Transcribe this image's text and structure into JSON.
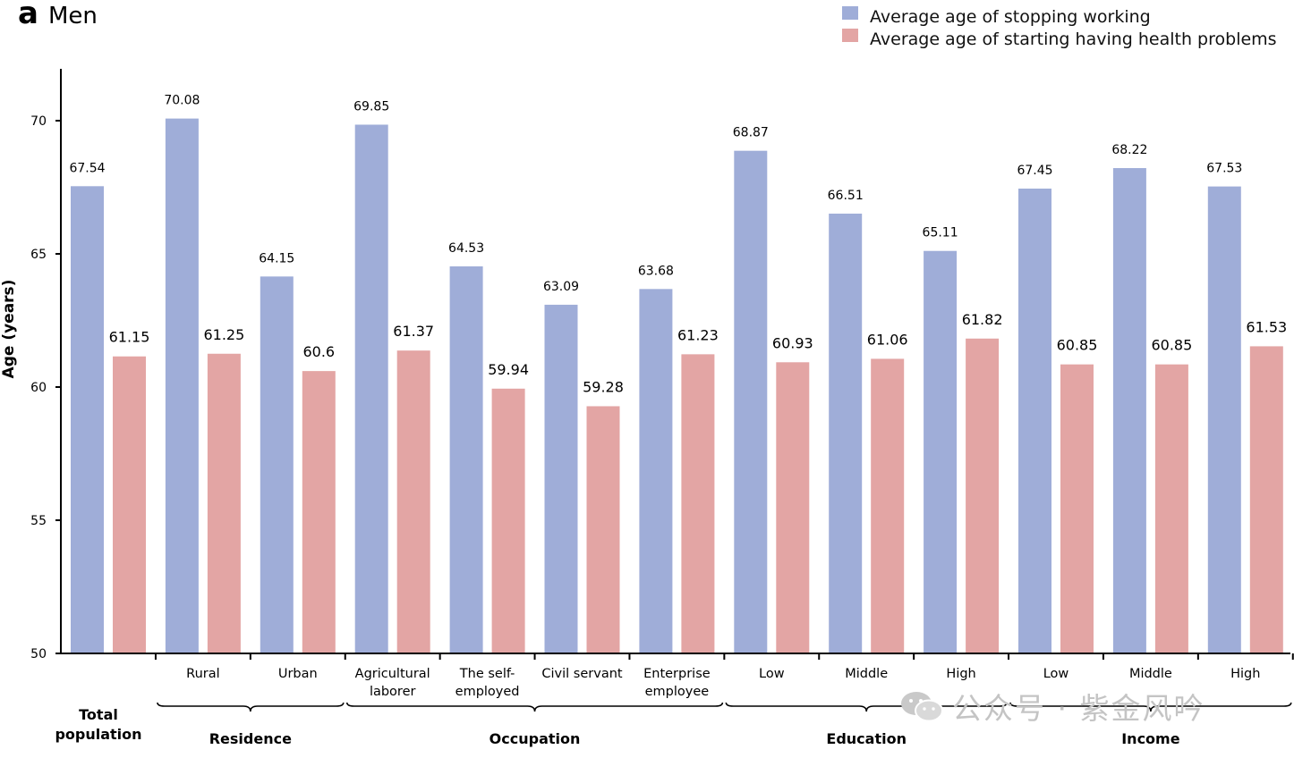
{
  "panel": {
    "letter": "a",
    "title": "Men"
  },
  "colors": {
    "series_a": "#9fadd8",
    "series_b": "#e3a5a4",
    "axis": "#000000",
    "watermark": "#c4c4c4"
  },
  "watermark": {
    "icon": "wechat-icon",
    "text": "公众号 · 紫金风吟"
  },
  "chart_data": {
    "type": "bar",
    "ylabel": "Age (years)",
    "ylim": [
      50,
      72
    ],
    "yticks": [
      50,
      55,
      60,
      65,
      70
    ],
    "grid": false,
    "legend_position": "top-right",
    "categories": [
      {
        "label": [
          "Total",
          "population"
        ],
        "bold": true
      },
      {
        "label": [
          "Rural"
        ]
      },
      {
        "label": [
          "Urban"
        ]
      },
      {
        "label": [
          "Agricultural",
          "laborer"
        ]
      },
      {
        "label": [
          "The self-",
          "employed"
        ]
      },
      {
        "label": [
          "Civil servant"
        ]
      },
      {
        "label": [
          "Enterprise",
          "employee"
        ]
      },
      {
        "label": [
          "Low"
        ]
      },
      {
        "label": [
          "Middle"
        ]
      },
      {
        "label": [
          "High"
        ]
      },
      {
        "label": [
          "Low"
        ]
      },
      {
        "label": [
          "Middle"
        ]
      },
      {
        "label": [
          "High"
        ]
      }
    ],
    "groups": [
      {
        "name": "Residence",
        "from": 1,
        "to": 2
      },
      {
        "name": "Occupation",
        "from": 3,
        "to": 6
      },
      {
        "name": "Education",
        "from": 7,
        "to": 9
      },
      {
        "name": "Income",
        "from": 10,
        "to": 12
      }
    ],
    "series": [
      {
        "name": "Average age of stopping working",
        "values": [
          67.54,
          70.08,
          64.15,
          69.85,
          64.53,
          63.09,
          63.68,
          68.87,
          66.51,
          65.11,
          67.45,
          68.22,
          67.53
        ],
        "labels": [
          "67.54",
          "70.08",
          "64.15",
          "69.85",
          "64.53",
          "63.09",
          "63.68",
          "68.87",
          "66.51",
          "65.11",
          "67.45",
          "68.22",
          "67.53"
        ]
      },
      {
        "name": "Average age of starting having health problems",
        "values": [
          61.15,
          61.25,
          60.6,
          61.37,
          59.94,
          59.28,
          61.23,
          60.93,
          61.06,
          61.82,
          60.85,
          60.85,
          61.53
        ],
        "labels": [
          "61.15",
          "61.25",
          "60.6",
          "61.37",
          "59.94",
          "59.28",
          "61.23",
          "60.93",
          "61.06",
          "61.82",
          "60.85",
          "60.85",
          "61.53"
        ]
      }
    ]
  }
}
